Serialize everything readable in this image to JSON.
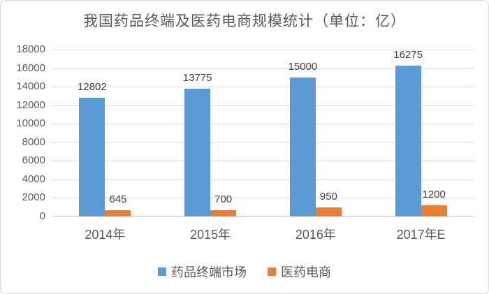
{
  "chart_data": {
    "type": "bar",
    "title": "我国药品终端及医药电商规模统计（单位：亿）",
    "categories": [
      "2014年",
      "2015年",
      "2016年",
      "2017年E"
    ],
    "series": [
      {
        "name": "药品终端市场",
        "color": "#5B9BD5",
        "values": [
          12802,
          13775,
          15000,
          16275
        ]
      },
      {
        "name": "医药电商",
        "color": "#ED7D31",
        "values": [
          645,
          700,
          950,
          1200
        ]
      }
    ],
    "ylim": [
      0,
      18000
    ],
    "ytick_step": 2000,
    "yticks": [
      0,
      2000,
      4000,
      6000,
      8000,
      10000,
      12000,
      14000,
      16000,
      18000
    ],
    "xlabel": "",
    "ylabel": "",
    "grid": "horizontal",
    "legend_position": "bottom",
    "data_labels": true
  },
  "style": {
    "gridline_color": "#D9D9D9",
    "axis_line_color": "#BFBFBF",
    "title_color": "#595959",
    "tick_label_color": "#595959",
    "data_label_color": "#404040",
    "background_color": "#FFFFFF",
    "border_color": "#D9D9D9"
  }
}
